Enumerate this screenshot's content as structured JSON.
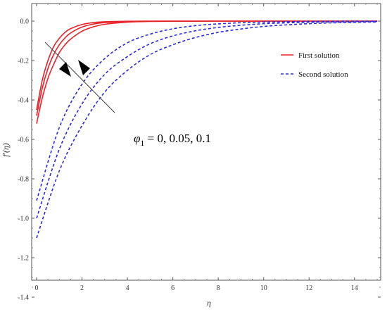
{
  "chart_data": {
    "type": "line",
    "title": "",
    "xlabel": "η",
    "ylabel": "f'(η)",
    "xlim": [
      0,
      15
    ],
    "ylim": [
      -1.4,
      0.04
    ],
    "x_ticks": [
      0,
      2,
      4,
      6,
      8,
      10,
      12,
      14
    ],
    "y_ticks": [
      0.0,
      -0.2,
      -0.4,
      -0.6,
      -0.8,
      -1.0,
      -1.2,
      -1.4
    ],
    "x_tick_labels": [
      "0",
      "2",
      "4",
      "6",
      "8",
      "10",
      "12",
      "14"
    ],
    "y_tick_labels": [
      "0.0",
      "-0.2",
      "-0.4",
      "-0.6",
      "-0.8",
      "-1.0",
      "-1.2",
      "-1.4"
    ],
    "grid": false,
    "legend_position": "top-right",
    "legend": [
      {
        "label": "First solution",
        "color": "#e8232a",
        "style": "solid"
      },
      {
        "label": "Second solution",
        "color": "#2b2be0",
        "style": "dashed"
      }
    ],
    "annotation": {
      "symbol": "φ",
      "subscript": "1",
      "values_text": " = 0, 0.05, 0.1"
    },
    "series": [
      {
        "solution": "First solution",
        "phi1": 0,
        "color": "#e8232a",
        "dash": "solid",
        "x": [
          0,
          0.25,
          0.5,
          0.75,
          1,
          1.25,
          1.5,
          2,
          2.5,
          3,
          4,
          5,
          6,
          8,
          10,
          15
        ],
        "y": [
          -0.45,
          -0.3,
          -0.2,
          -0.13,
          -0.087,
          -0.057,
          -0.038,
          -0.017,
          -0.0073,
          -0.0032,
          -0.0006,
          -0.0001,
          0,
          0,
          0,
          0
        ]
      },
      {
        "solution": "First solution",
        "phi1": 0.05,
        "color": "#e8232a",
        "dash": "solid",
        "x": [
          0,
          0.25,
          0.5,
          0.75,
          1,
          1.25,
          1.5,
          2,
          2.5,
          3,
          4,
          5,
          6,
          8,
          10,
          15
        ],
        "y": [
          -0.48,
          -0.34,
          -0.24,
          -0.17,
          -0.12,
          -0.085,
          -0.06,
          -0.03,
          -0.015,
          -0.0075,
          -0.0019,
          -0.0005,
          -0.0001,
          0,
          0,
          0
        ]
      },
      {
        "solution": "First solution",
        "phi1": 0.1,
        "color": "#e8232a",
        "dash": "solid",
        "x": [
          0,
          0.25,
          0.5,
          0.75,
          1,
          1.25,
          1.5,
          2,
          2.5,
          3,
          4,
          5,
          6,
          8,
          10,
          15
        ],
        "y": [
          -0.52,
          -0.39,
          -0.29,
          -0.22,
          -0.16,
          -0.12,
          -0.091,
          -0.051,
          -0.029,
          -0.016,
          -0.0051,
          -0.0016,
          -0.0005,
          0,
          0,
          0
        ]
      },
      {
        "solution": "Second solution",
        "phi1": 0,
        "color": "#2b2be0",
        "dash": "dashed",
        "x": [
          0,
          1,
          2,
          3,
          4,
          5,
          6,
          7,
          8,
          9,
          10,
          11,
          12,
          13,
          14,
          15
        ],
        "y": [
          -0.91,
          -0.54,
          -0.32,
          -0.19,
          -0.11,
          -0.066,
          -0.039,
          -0.023,
          -0.014,
          -0.0082,
          -0.0048,
          -0.0029,
          -0.0017,
          -0.001,
          -0.0006,
          -0.0004
        ]
      },
      {
        "solution": "Second solution",
        "phi1": 0.05,
        "color": "#2b2be0",
        "dash": "dashed",
        "x": [
          0,
          1,
          2,
          3,
          4,
          5,
          6,
          7,
          8,
          9,
          10,
          11,
          12,
          13,
          14,
          15
        ],
        "y": [
          -1.0,
          -0.65,
          -0.42,
          -0.27,
          -0.18,
          -0.115,
          -0.075,
          -0.049,
          -0.032,
          -0.021,
          -0.013,
          -0.0088,
          -0.0057,
          -0.0037,
          -0.0024,
          -0.0016
        ]
      },
      {
        "solution": "Second solution",
        "phi1": 0.1,
        "color": "#2b2be0",
        "dash": "dashed",
        "x": [
          0,
          1,
          2,
          3,
          4,
          5,
          6,
          7,
          8,
          9,
          10,
          11,
          12,
          13,
          14,
          15
        ],
        "y": [
          -1.1,
          -0.76,
          -0.53,
          -0.36,
          -0.25,
          -0.17,
          -0.12,
          -0.083,
          -0.057,
          -0.04,
          -0.027,
          -0.019,
          -0.013,
          -0.0089,
          -0.0061,
          -0.0042
        ]
      }
    ]
  }
}
